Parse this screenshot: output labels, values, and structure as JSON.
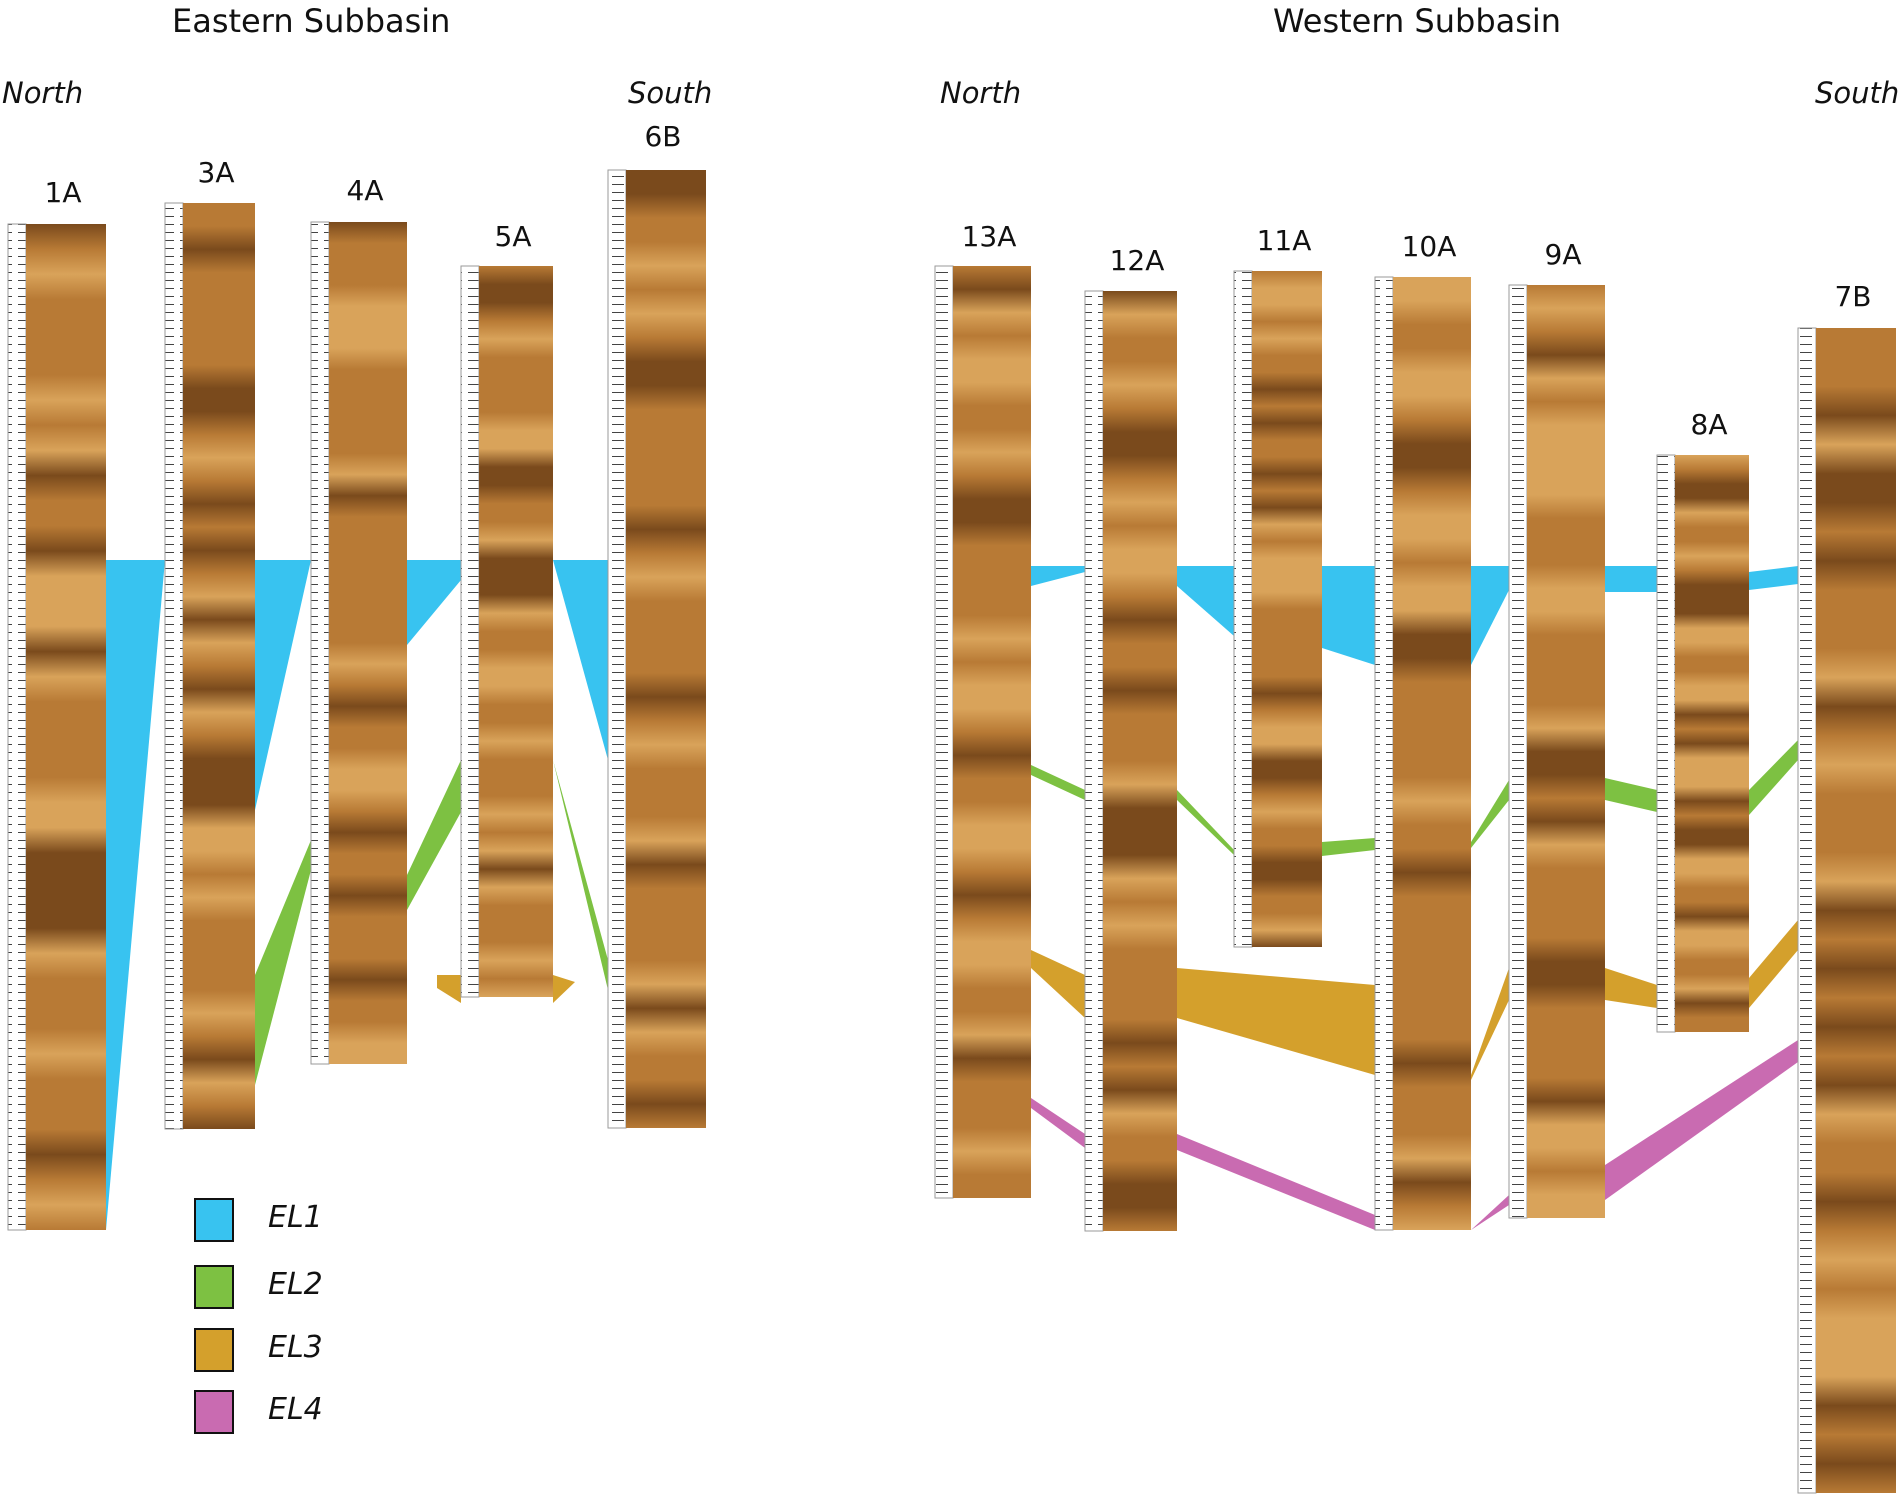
{
  "titles": {
    "eastern": "Eastern Subbasin",
    "western": "Western Subbasin"
  },
  "directions": {
    "east_north": "North",
    "east_south": "South",
    "west_north": "North",
    "west_south": "South"
  },
  "cores": [
    "1A",
    "3A",
    "4A",
    "5A",
    "6B",
    "13A",
    "12A",
    "11A",
    "10A",
    "9A",
    "8A",
    "7B"
  ],
  "legend": [
    {
      "label": "EL1",
      "color": "#38c3f0"
    },
    {
      "label": "EL2",
      "color": "#7dc142"
    },
    {
      "label": "EL3",
      "color": "#d4a02c"
    },
    {
      "label": "EL4",
      "color": "#c96bb1"
    }
  ],
  "colors": {
    "sediment_light": "#d9a35a",
    "sediment_mid": "#b87a35",
    "sediment_dark": "#7a4a1c",
    "scale_bar": "#9a9a9a"
  }
}
